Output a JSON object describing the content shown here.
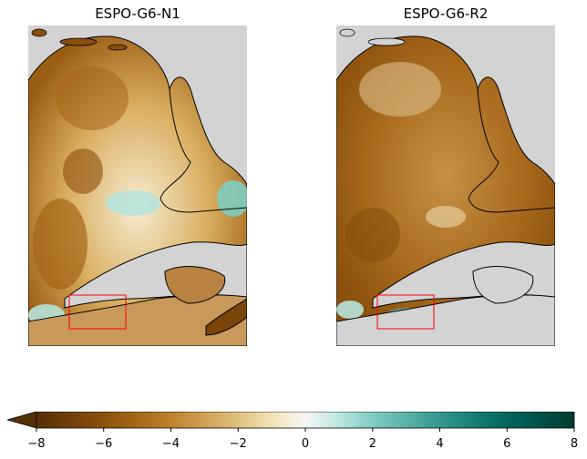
{
  "maps": [
    {
      "title": "ESPO-G6-N1"
    },
    {
      "title": "ESPO-G6-R2"
    }
  ],
  "colorbar": {
    "min": -8,
    "max": 8,
    "ticks": [
      "−8",
      "−6",
      "−4",
      "−2",
      "0",
      "2",
      "4",
      "6",
      "8"
    ],
    "extend": "min",
    "colormap": "BrBG"
  },
  "colors": {
    "background": "#d3d3d3",
    "coastline": "#000000",
    "highlight_box": "#ff0000"
  }
}
